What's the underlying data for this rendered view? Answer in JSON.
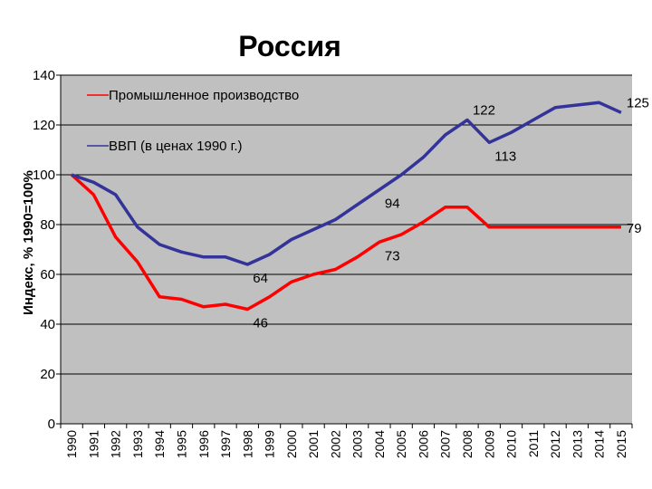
{
  "chart_data": {
    "type": "line",
    "title": "Россия",
    "ylabel": "Индекс, % 1990=100%",
    "xlabel": "",
    "ylim": [
      0,
      140
    ],
    "yticks": [
      0,
      20,
      40,
      60,
      80,
      100,
      120,
      140
    ],
    "grid": true,
    "legend_position": "top-left",
    "plot_background": "#c0c0c0",
    "x": [
      "1990",
      "1991",
      "1992",
      "1993",
      "1994",
      "1995",
      "1996",
      "1997",
      "1998",
      "1999",
      "2000",
      "2001",
      "2002",
      "2003",
      "2004",
      "2005",
      "2006",
      "2007",
      "2008",
      "2009",
      "2010",
      "2011",
      "2012",
      "2013",
      "2014",
      "2015"
    ],
    "series": [
      {
        "name": "Промышленное производство",
        "color": "#ff0000",
        "values": [
          100,
          92,
          75,
          65,
          51,
          50,
          47,
          48,
          46,
          51,
          57,
          60,
          62,
          67,
          73,
          76,
          81,
          87,
          87,
          79,
          79,
          79,
          79,
          79,
          79,
          79
        ]
      },
      {
        "name": "ВВП (в ценах 1990 г.)",
        "color": "#333399",
        "values": [
          100,
          97,
          92,
          79,
          72,
          69,
          67,
          67,
          64,
          68,
          74,
          78,
          82,
          88,
          94,
          100,
          107,
          116,
          122,
          113,
          117,
          122,
          127,
          128,
          129,
          125
        ]
      }
    ],
    "annotations": [
      {
        "text": "122",
        "series": 1,
        "index": 18,
        "anchor": "right-above"
      },
      {
        "text": "125",
        "series": 1,
        "index": 25,
        "anchor": "right-above"
      },
      {
        "text": "113",
        "series": 1,
        "index": 19,
        "anchor": "right-below"
      },
      {
        "text": "94",
        "series": 1,
        "index": 14,
        "anchor": "right-below"
      },
      {
        "text": "79",
        "series": 0,
        "index": 25,
        "anchor": "right"
      },
      {
        "text": "73",
        "series": 0,
        "index": 14,
        "anchor": "right-below"
      },
      {
        "text": "64",
        "series": 1,
        "index": 8,
        "anchor": "right-below"
      },
      {
        "text": "46",
        "series": 0,
        "index": 8,
        "anchor": "right-below"
      }
    ]
  }
}
